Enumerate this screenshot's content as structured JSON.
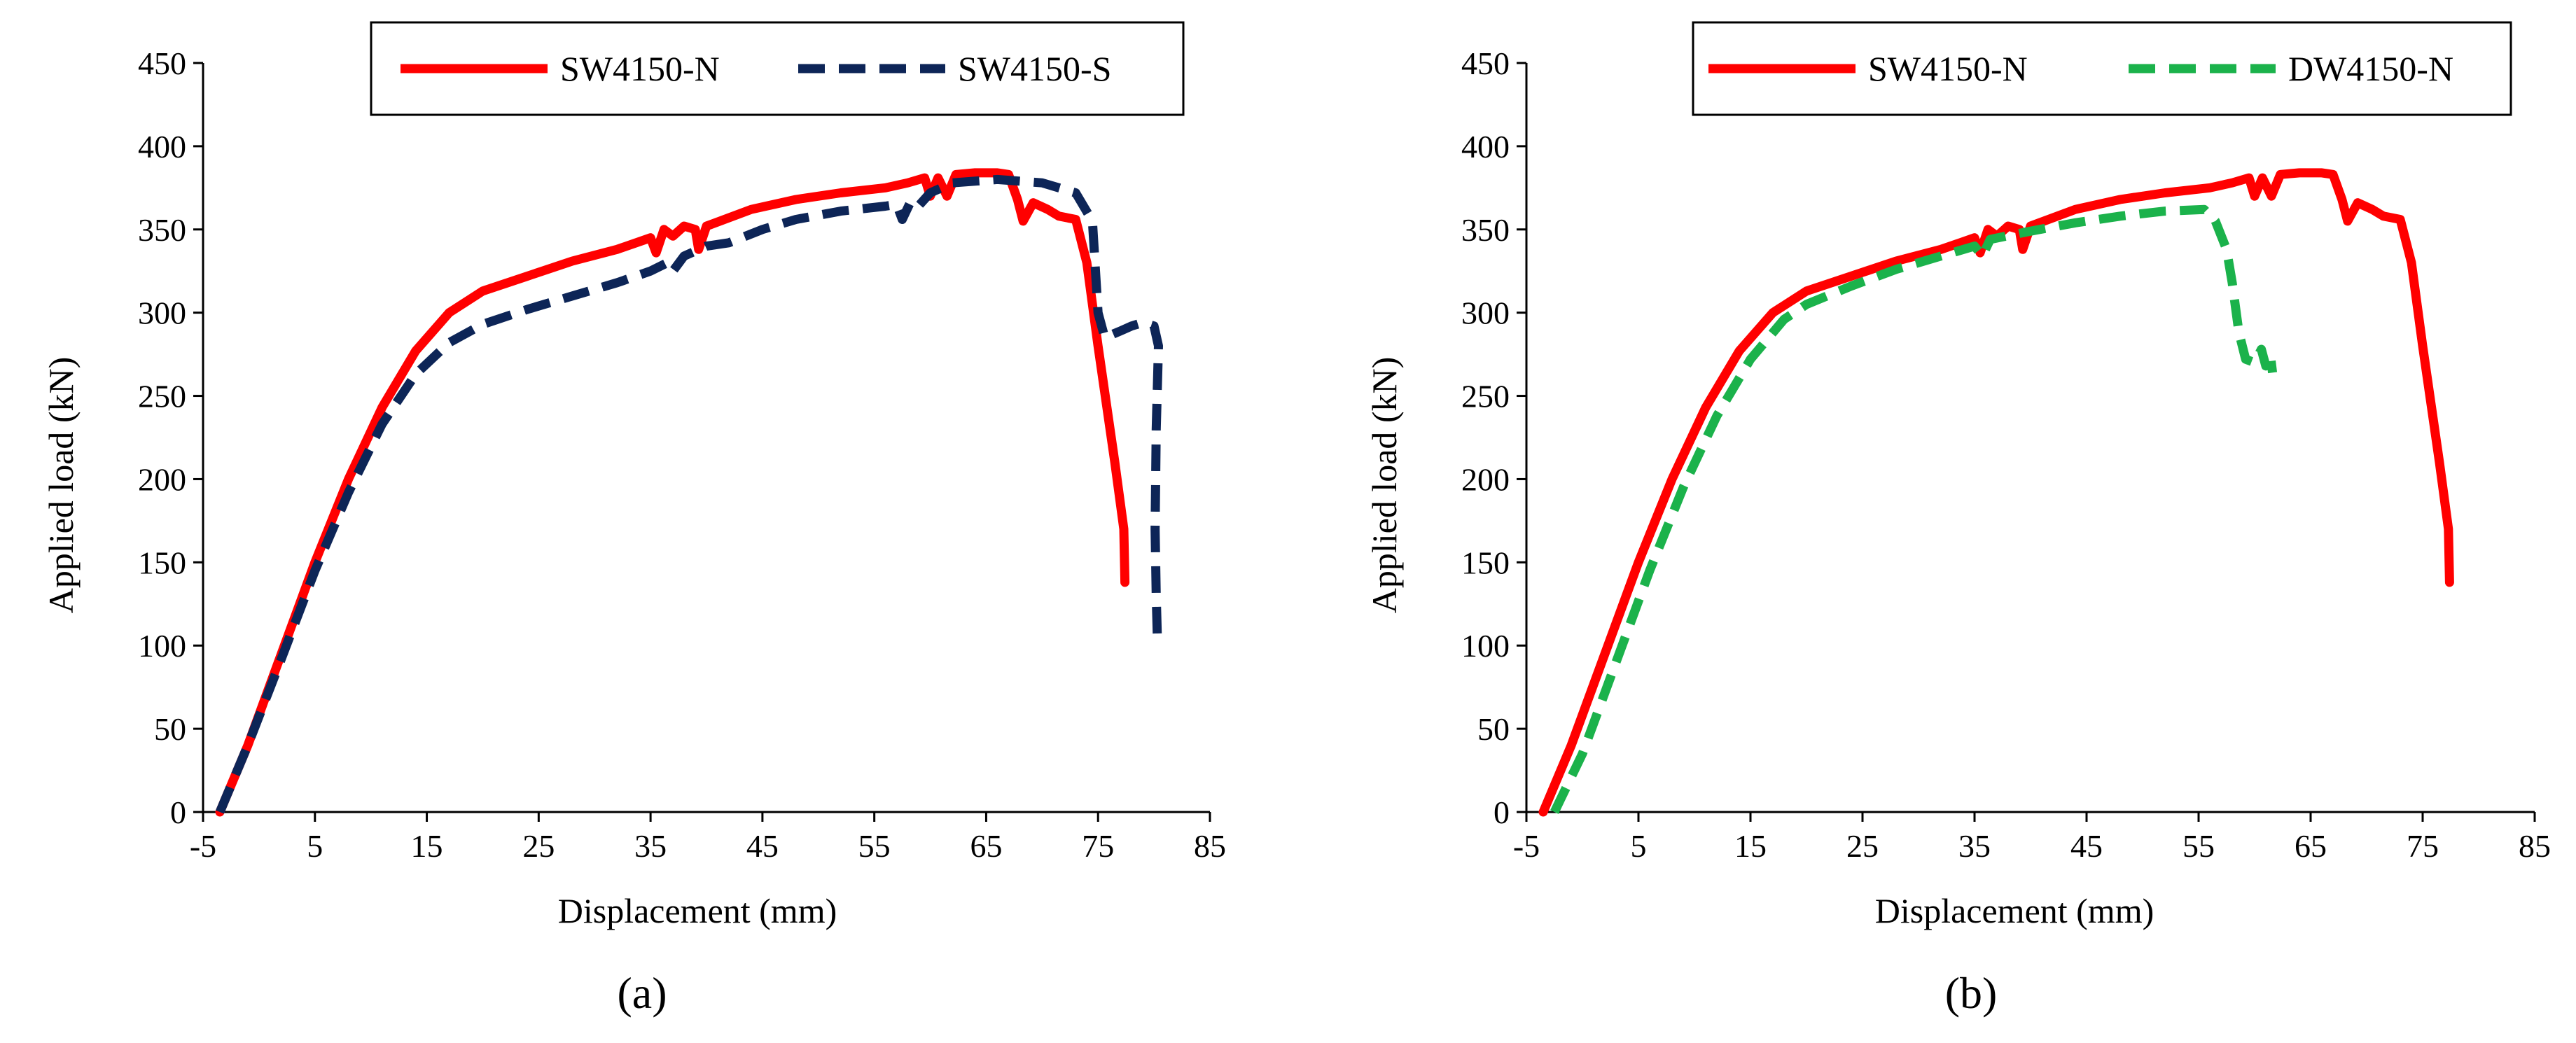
{
  "figure": {
    "captions": [
      "(a)",
      "(b)"
    ]
  },
  "chart_data": [
    {
      "type": "line",
      "panel_caption": "(a)",
      "xlabel": "Displacement  (mm)",
      "ylabel": "Applied load (kN)",
      "xlim": [
        -5,
        85
      ],
      "ylim": [
        0,
        450
      ],
      "xticks": [
        -5,
        5,
        15,
        25,
        35,
        45,
        55,
        65,
        75,
        85
      ],
      "yticks": [
        0,
        50,
        100,
        150,
        200,
        250,
        300,
        350,
        400,
        450
      ],
      "grid": false,
      "legend_position": "top-right, boxed, horizontal",
      "series": [
        {
          "name": "SW4150-N",
          "color": "#ff0000",
          "style": "solid",
          "points": [
            [
              -3.5,
              0
            ],
            [
              -1,
              40
            ],
            [
              2,
              95
            ],
            [
              5,
              150
            ],
            [
              8,
              200
            ],
            [
              11,
              243
            ],
            [
              14,
              277
            ],
            [
              17,
              300
            ],
            [
              20,
              313
            ],
            [
              24,
              322
            ],
            [
              28,
              331
            ],
            [
              32,
              338
            ],
            [
              35,
              345
            ],
            [
              35.5,
              336
            ],
            [
              36.2,
              350
            ],
            [
              37,
              346
            ],
            [
              38,
              352
            ],
            [
              39,
              350
            ],
            [
              39.3,
              338
            ],
            [
              40,
              352
            ],
            [
              44,
              362
            ],
            [
              48,
              368
            ],
            [
              52,
              372
            ],
            [
              56,
              375
            ],
            [
              58,
              378
            ],
            [
              59.5,
              381
            ],
            [
              60,
              370
            ],
            [
              60.7,
              381
            ],
            [
              61.5,
              370
            ],
            [
              62.3,
              383
            ],
            [
              64,
              384
            ],
            [
              66,
              384
            ],
            [
              67,
              383
            ],
            [
              67.8,
              368
            ],
            [
              68.3,
              355
            ],
            [
              69.2,
              366
            ],
            [
              70.5,
              362
            ],
            [
              71.5,
              358
            ],
            [
              73,
              356
            ],
            [
              74,
              330
            ],
            [
              75,
              280
            ],
            [
              76.5,
              210
            ],
            [
              77.3,
              170
            ],
            [
              77.4,
              138
            ]
          ]
        },
        {
          "name": "SW4150-S",
          "color": "#0d2557",
          "style": "dashed",
          "points": [
            [
              -3.5,
              0
            ],
            [
              -1,
              40
            ],
            [
              2,
              92
            ],
            [
              5,
              145
            ],
            [
              8,
              192
            ],
            [
              11,
              233
            ],
            [
              14,
              263
            ],
            [
              17,
              282
            ],
            [
              20,
              293
            ],
            [
              24,
              302
            ],
            [
              28,
              310
            ],
            [
              32,
              318
            ],
            [
              35,
              325
            ],
            [
              36.5,
              330
            ],
            [
              37,
              325
            ],
            [
              38,
              334
            ],
            [
              40,
              340
            ],
            [
              42,
              342
            ],
            [
              45,
              350
            ],
            [
              48,
              356
            ],
            [
              52,
              361
            ],
            [
              56,
              364
            ],
            [
              57,
              365
            ],
            [
              57.5,
              356
            ],
            [
              58.2,
              366
            ],
            [
              58.8,
              363
            ],
            [
              60,
              372
            ],
            [
              62,
              378
            ],
            [
              66,
              380
            ],
            [
              70,
              378
            ],
            [
              73,
              372
            ],
            [
              74.5,
              355
            ],
            [
              75,
              300
            ],
            [
              75.6,
              285
            ],
            [
              77,
              289
            ],
            [
              78,
              292
            ],
            [
              79,
              294
            ],
            [
              80,
              292
            ],
            [
              80.4,
              280
            ],
            [
              80.2,
              230
            ],
            [
              80.1,
              170
            ],
            [
              80.2,
              130
            ],
            [
              80.3,
              105
            ]
          ]
        }
      ]
    },
    {
      "type": "line",
      "panel_caption": "(b)",
      "xlabel": "Displacement  (mm)",
      "ylabel": "Applied load (kN)",
      "xlim": [
        -5,
        85
      ],
      "ylim": [
        0,
        450
      ],
      "xticks": [
        -5,
        5,
        15,
        25,
        35,
        45,
        55,
        65,
        75,
        85
      ],
      "yticks": [
        0,
        50,
        100,
        150,
        200,
        250,
        300,
        350,
        400,
        450
      ],
      "grid": false,
      "legend_position": "top-right, boxed, horizontal",
      "series": [
        {
          "name": "SW4150-N",
          "color": "#ff0000",
          "style": "solid",
          "points": [
            [
              -3.5,
              0
            ],
            [
              -1,
              40
            ],
            [
              2,
              95
            ],
            [
              5,
              150
            ],
            [
              8,
              200
            ],
            [
              11,
              243
            ],
            [
              14,
              277
            ],
            [
              17,
              300
            ],
            [
              20,
              313
            ],
            [
              24,
              322
            ],
            [
              28,
              331
            ],
            [
              32,
              338
            ],
            [
              35,
              345
            ],
            [
              35.5,
              336
            ],
            [
              36.2,
              350
            ],
            [
              37,
              346
            ],
            [
              38,
              352
            ],
            [
              39,
              350
            ],
            [
              39.3,
              338
            ],
            [
              40,
              352
            ],
            [
              44,
              362
            ],
            [
              48,
              368
            ],
            [
              52,
              372
            ],
            [
              56,
              375
            ],
            [
              58,
              378
            ],
            [
              59.5,
              381
            ],
            [
              60,
              370
            ],
            [
              60.7,
              381
            ],
            [
              61.5,
              370
            ],
            [
              62.3,
              383
            ],
            [
              64,
              384
            ],
            [
              66,
              384
            ],
            [
              67,
              383
            ],
            [
              67.8,
              368
            ],
            [
              68.3,
              355
            ],
            [
              69.2,
              366
            ],
            [
              70.5,
              362
            ],
            [
              71.5,
              358
            ],
            [
              73,
              356
            ],
            [
              74,
              330
            ],
            [
              75,
              280
            ],
            [
              76.5,
              210
            ],
            [
              77.3,
              170
            ],
            [
              77.4,
              138
            ]
          ]
        },
        {
          "name": "DW4150-N",
          "color": "#1bb24b",
          "style": "dashed",
          "points": [
            [
              -2.5,
              0
            ],
            [
              0,
              35
            ],
            [
              3,
              90
            ],
            [
              6,
              145
            ],
            [
              9,
              195
            ],
            [
              12,
              238
            ],
            [
              15,
              272
            ],
            [
              18,
              296
            ],
            [
              20,
              305
            ],
            [
              24,
              316
            ],
            [
              28,
              326
            ],
            [
              32,
              334
            ],
            [
              35,
              340
            ],
            [
              35.7,
              334
            ],
            [
              36.4,
              344
            ],
            [
              40,
              349
            ],
            [
              44,
              354
            ],
            [
              48,
              358
            ],
            [
              52,
              361
            ],
            [
              55.5,
              362
            ],
            [
              56.5,
              355
            ],
            [
              57.5,
              338
            ],
            [
              58,
              318
            ],
            [
              58.6,
              288
            ],
            [
              59.2,
              272
            ],
            [
              60,
              270
            ],
            [
              60.6,
              278
            ],
            [
              61,
              268
            ],
            [
              61.4,
              275
            ],
            [
              61.6,
              264
            ]
          ]
        }
      ]
    }
  ]
}
